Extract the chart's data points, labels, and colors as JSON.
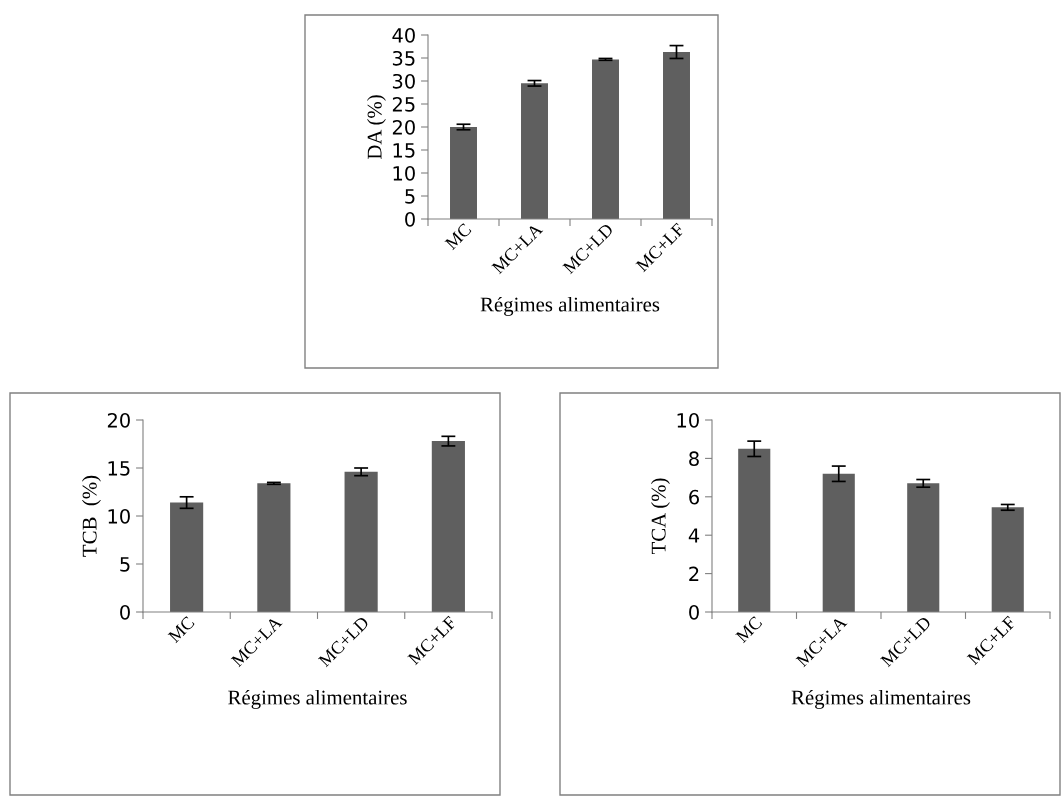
{
  "chart_data": [
    {
      "type": "bar",
      "categories": [
        "MC",
        "MC+LA",
        "MC+LD",
        "MC+LF"
      ],
      "values": [
        20,
        29.5,
        34.7,
        36.3
      ],
      "errors": [
        0.6,
        0.6,
        0.2,
        1.4
      ],
      "color": "#5f5f5f",
      "xlabel": "Régimes alimentaires",
      "ylabel": "DA (%)",
      "ylim": [
        0,
        40
      ],
      "yticks": [
        0,
        5,
        10,
        15,
        20,
        25,
        30,
        35,
        40
      ],
      "grid": false,
      "legend": false
    },
    {
      "type": "bar",
      "categories": [
        "MC",
        "MC+LA",
        "MC+LD",
        "MC+LF"
      ],
      "values": [
        11.4,
        13.4,
        14.6,
        17.8
      ],
      "errors": [
        0.6,
        0.1,
        0.4,
        0.5
      ],
      "color": "#5f5f5f",
      "xlabel": "Régimes alimentaires",
      "ylabel": "TCB  (%)",
      "ylim": [
        0,
        20
      ],
      "yticks": [
        0,
        5,
        10,
        15,
        20
      ],
      "grid": false,
      "legend": false
    },
    {
      "type": "bar",
      "categories": [
        "MC",
        "MC+LA",
        "MC+LD",
        "MC+LF"
      ],
      "values": [
        8.5,
        7.2,
        6.7,
        5.45
      ],
      "errors": [
        0.4,
        0.4,
        0.2,
        0.15
      ],
      "color": "#5f5f5f",
      "xlabel": "Régimes alimentaires",
      "ylabel": "TCA (%)",
      "ylim": [
        0,
        10
      ],
      "yticks": [
        0,
        2,
        4,
        6,
        8,
        10
      ],
      "grid": false,
      "legend": false
    }
  ]
}
